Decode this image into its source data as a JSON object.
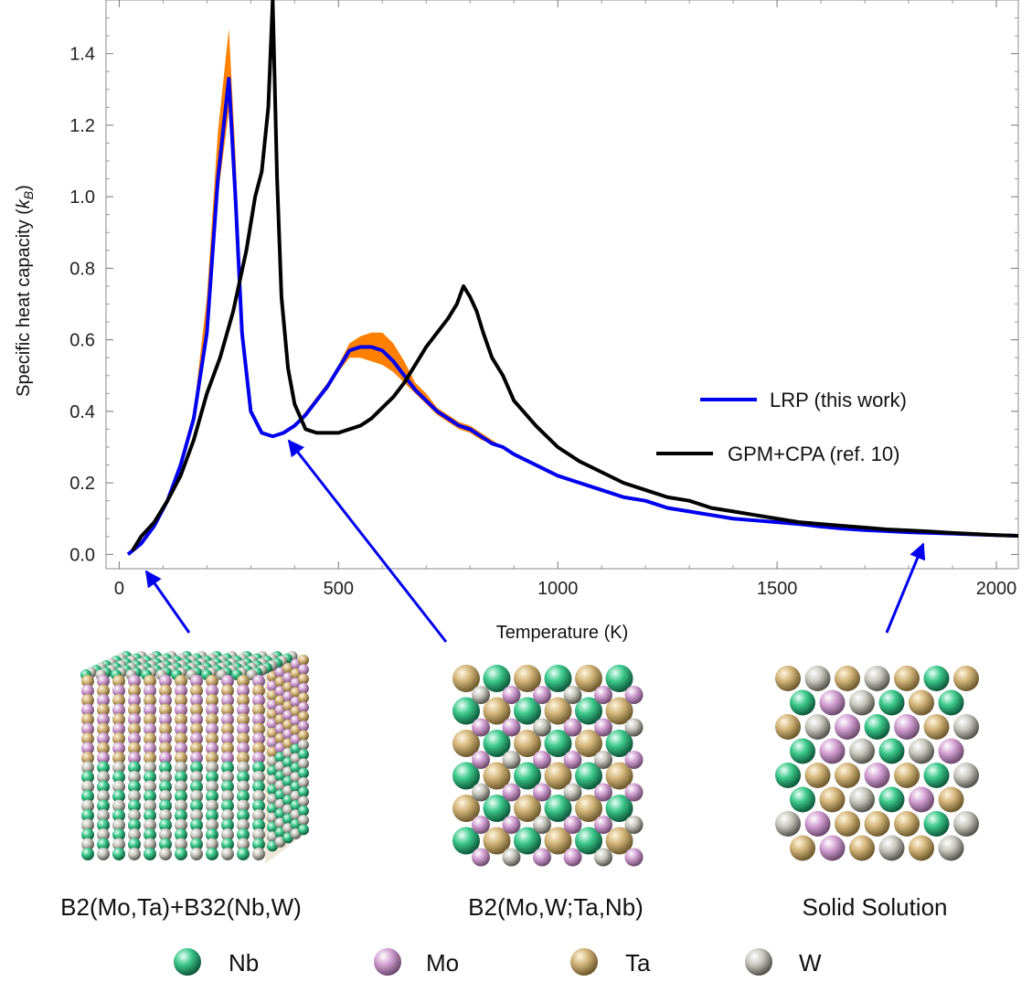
{
  "chart_data": {
    "type": "line",
    "xlabel": "Temperature (K)",
    "ylabel_main": "Specific heat capacity (",
    "ylabel_sym": "k",
    "ylabel_sub": "B",
    "ylabel_close": ")",
    "xlim": [
      -30,
      2050
    ],
    "ylim": [
      -0.04,
      1.55
    ],
    "xticks": [
      0,
      500,
      1000,
      1500,
      2000
    ],
    "yticks": [
      0.0,
      0.2,
      0.4,
      0.6,
      0.8,
      1.0,
      1.2,
      1.4
    ],
    "legend_position": "right",
    "series": [
      {
        "name": "LRP (this work)",
        "color": "#0000ee",
        "band_color": "#ff8000",
        "x": [
          20,
          50,
          80,
          110,
          140,
          170,
          200,
          225,
          250,
          265,
          280,
          300,
          325,
          350,
          375,
          400,
          425,
          450,
          475,
          500,
          525,
          550,
          575,
          600,
          625,
          650,
          675,
          700,
          725,
          750,
          775,
          800,
          825,
          850,
          875,
          900,
          950,
          1000,
          1050,
          1100,
          1150,
          1200,
          1250,
          1300,
          1350,
          1400,
          1450,
          1500,
          1550,
          1600,
          1650,
          1700,
          1750,
          1800,
          1850,
          1900,
          1950,
          2000,
          2050
        ],
        "y": [
          0.0,
          0.03,
          0.08,
          0.15,
          0.25,
          0.38,
          0.62,
          1.05,
          1.33,
          1.0,
          0.62,
          0.4,
          0.34,
          0.33,
          0.34,
          0.36,
          0.39,
          0.43,
          0.47,
          0.52,
          0.57,
          0.58,
          0.58,
          0.57,
          0.54,
          0.5,
          0.46,
          0.43,
          0.4,
          0.38,
          0.36,
          0.35,
          0.33,
          0.31,
          0.3,
          0.28,
          0.25,
          0.22,
          0.2,
          0.18,
          0.16,
          0.15,
          0.13,
          0.12,
          0.11,
          0.1,
          0.095,
          0.09,
          0.085,
          0.078,
          0.072,
          0.068,
          0.065,
          0.062,
          0.06,
          0.058,
          0.056,
          0.054,
          0.052
        ],
        "band_low": [
          0.0,
          0.03,
          0.08,
          0.15,
          0.25,
          0.38,
          0.66,
          1.0,
          1.24,
          0.92,
          0.6,
          0.4,
          0.34,
          0.33,
          0.34,
          0.36,
          0.39,
          0.43,
          0.46,
          0.51,
          0.55,
          0.55,
          0.54,
          0.53,
          0.51,
          0.48,
          0.45,
          0.42,
          0.39,
          0.37,
          0.35,
          0.34,
          0.32,
          0.31,
          0.3,
          0.28,
          0.25,
          0.22,
          0.2,
          0.18,
          0.16,
          0.15,
          0.13,
          0.12,
          0.11,
          0.1,
          0.095,
          0.09,
          0.085,
          0.078,
          0.072,
          0.068,
          0.065,
          0.062,
          0.06,
          0.058,
          0.056,
          0.054,
          0.052
        ],
        "band_high": [
          0.0,
          0.03,
          0.08,
          0.15,
          0.25,
          0.4,
          0.72,
          1.18,
          1.47,
          1.12,
          0.66,
          0.4,
          0.34,
          0.33,
          0.34,
          0.36,
          0.4,
          0.44,
          0.48,
          0.53,
          0.59,
          0.61,
          0.62,
          0.62,
          0.59,
          0.54,
          0.48,
          0.45,
          0.41,
          0.39,
          0.37,
          0.36,
          0.34,
          0.32,
          0.3,
          0.28,
          0.25,
          0.22,
          0.2,
          0.18,
          0.16,
          0.15,
          0.13,
          0.12,
          0.11,
          0.1,
          0.095,
          0.09,
          0.085,
          0.078,
          0.072,
          0.068,
          0.065,
          0.062,
          0.06,
          0.058,
          0.056,
          0.054,
          0.052
        ]
      },
      {
        "name": "GPM+CPA (ref. 10)",
        "color": "#000000",
        "x": [
          30,
          50,
          80,
          110,
          140,
          170,
          200,
          230,
          260,
          290,
          310,
          325,
          340,
          350,
          360,
          370,
          385,
          400,
          425,
          450,
          475,
          500,
          525,
          550,
          575,
          600,
          625,
          650,
          675,
          700,
          725,
          750,
          770,
          785,
          800,
          815,
          830,
          850,
          875,
          900,
          950,
          1000,
          1050,
          1100,
          1150,
          1200,
          1250,
          1300,
          1350,
          1400,
          1450,
          1500,
          1550,
          1600,
          1650,
          1700,
          1750,
          1800,
          1850,
          1900,
          1950,
          2000,
          2050
        ],
        "y": [
          0.01,
          0.05,
          0.09,
          0.15,
          0.22,
          0.32,
          0.45,
          0.55,
          0.68,
          0.85,
          1.0,
          1.07,
          1.25,
          1.55,
          1.05,
          0.72,
          0.52,
          0.42,
          0.35,
          0.34,
          0.34,
          0.34,
          0.35,
          0.36,
          0.38,
          0.41,
          0.44,
          0.48,
          0.53,
          0.58,
          0.62,
          0.66,
          0.7,
          0.75,
          0.72,
          0.68,
          0.62,
          0.55,
          0.5,
          0.43,
          0.36,
          0.3,
          0.26,
          0.23,
          0.2,
          0.18,
          0.16,
          0.15,
          0.13,
          0.12,
          0.11,
          0.1,
          0.09,
          0.085,
          0.08,
          0.075,
          0.07,
          0.067,
          0.064,
          0.06,
          0.057,
          0.054,
          0.052
        ]
      }
    ]
  },
  "structures": [
    {
      "caption": "B2(Mo,Ta)+B32(Nb,W)"
    },
    {
      "caption": "B2(Mo,W;Ta,Nb)"
    },
    {
      "caption": "Solid Solution"
    }
  ],
  "elements": [
    {
      "symbol": "Nb",
      "color": "#3cc88c"
    },
    {
      "symbol": "Mo",
      "color": "#d2a0d2"
    },
    {
      "symbol": "Ta",
      "color": "#d2b478"
    },
    {
      "symbol": "W",
      "color": "#c8c8be"
    }
  ]
}
